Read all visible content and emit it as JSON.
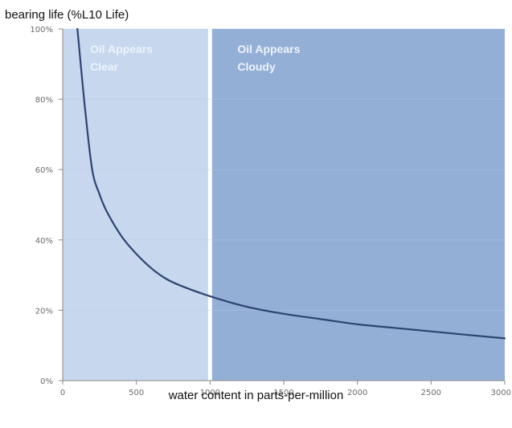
{
  "chart_data": {
    "type": "line",
    "title": "",
    "ylabel": "bearing life (%L10 Life)",
    "xlabel": "water content in parts-per-million",
    "xlim": [
      0,
      3000
    ],
    "ylim": [
      0,
      1.0
    ],
    "x_ticks": [
      "0",
      "500",
      "1000",
      "1500",
      "2000",
      "2500",
      "3000"
    ],
    "y_ticks": [
      "0%",
      "20%",
      "40%",
      "60%",
      "80%",
      "100%"
    ],
    "regions": [
      {
        "from": 0,
        "to": 1000,
        "label_lines": [
          "Oil Appears",
          "Clear"
        ],
        "color": "#c6d7ee"
      },
      {
        "from": 1000,
        "to": 3000,
        "label_lines": [
          "Oil Appears",
          "Cloudy"
        ],
        "color": "#93afd6"
      }
    ],
    "divider_x": 1000,
    "series": [
      {
        "color": "#2d4470",
        "x": [
          100,
          150,
          200,
          250,
          300,
          400,
          500,
          600,
          700,
          800,
          1000,
          1250,
          1500,
          1750,
          2000,
          2250,
          2500,
          2750,
          3000
        ],
        "y": [
          1.0,
          0.78,
          0.6,
          0.53,
          0.48,
          0.41,
          0.36,
          0.32,
          0.29,
          0.27,
          0.24,
          0.21,
          0.19,
          0.175,
          0.16,
          0.15,
          0.14,
          0.13,
          0.12
        ]
      }
    ]
  }
}
